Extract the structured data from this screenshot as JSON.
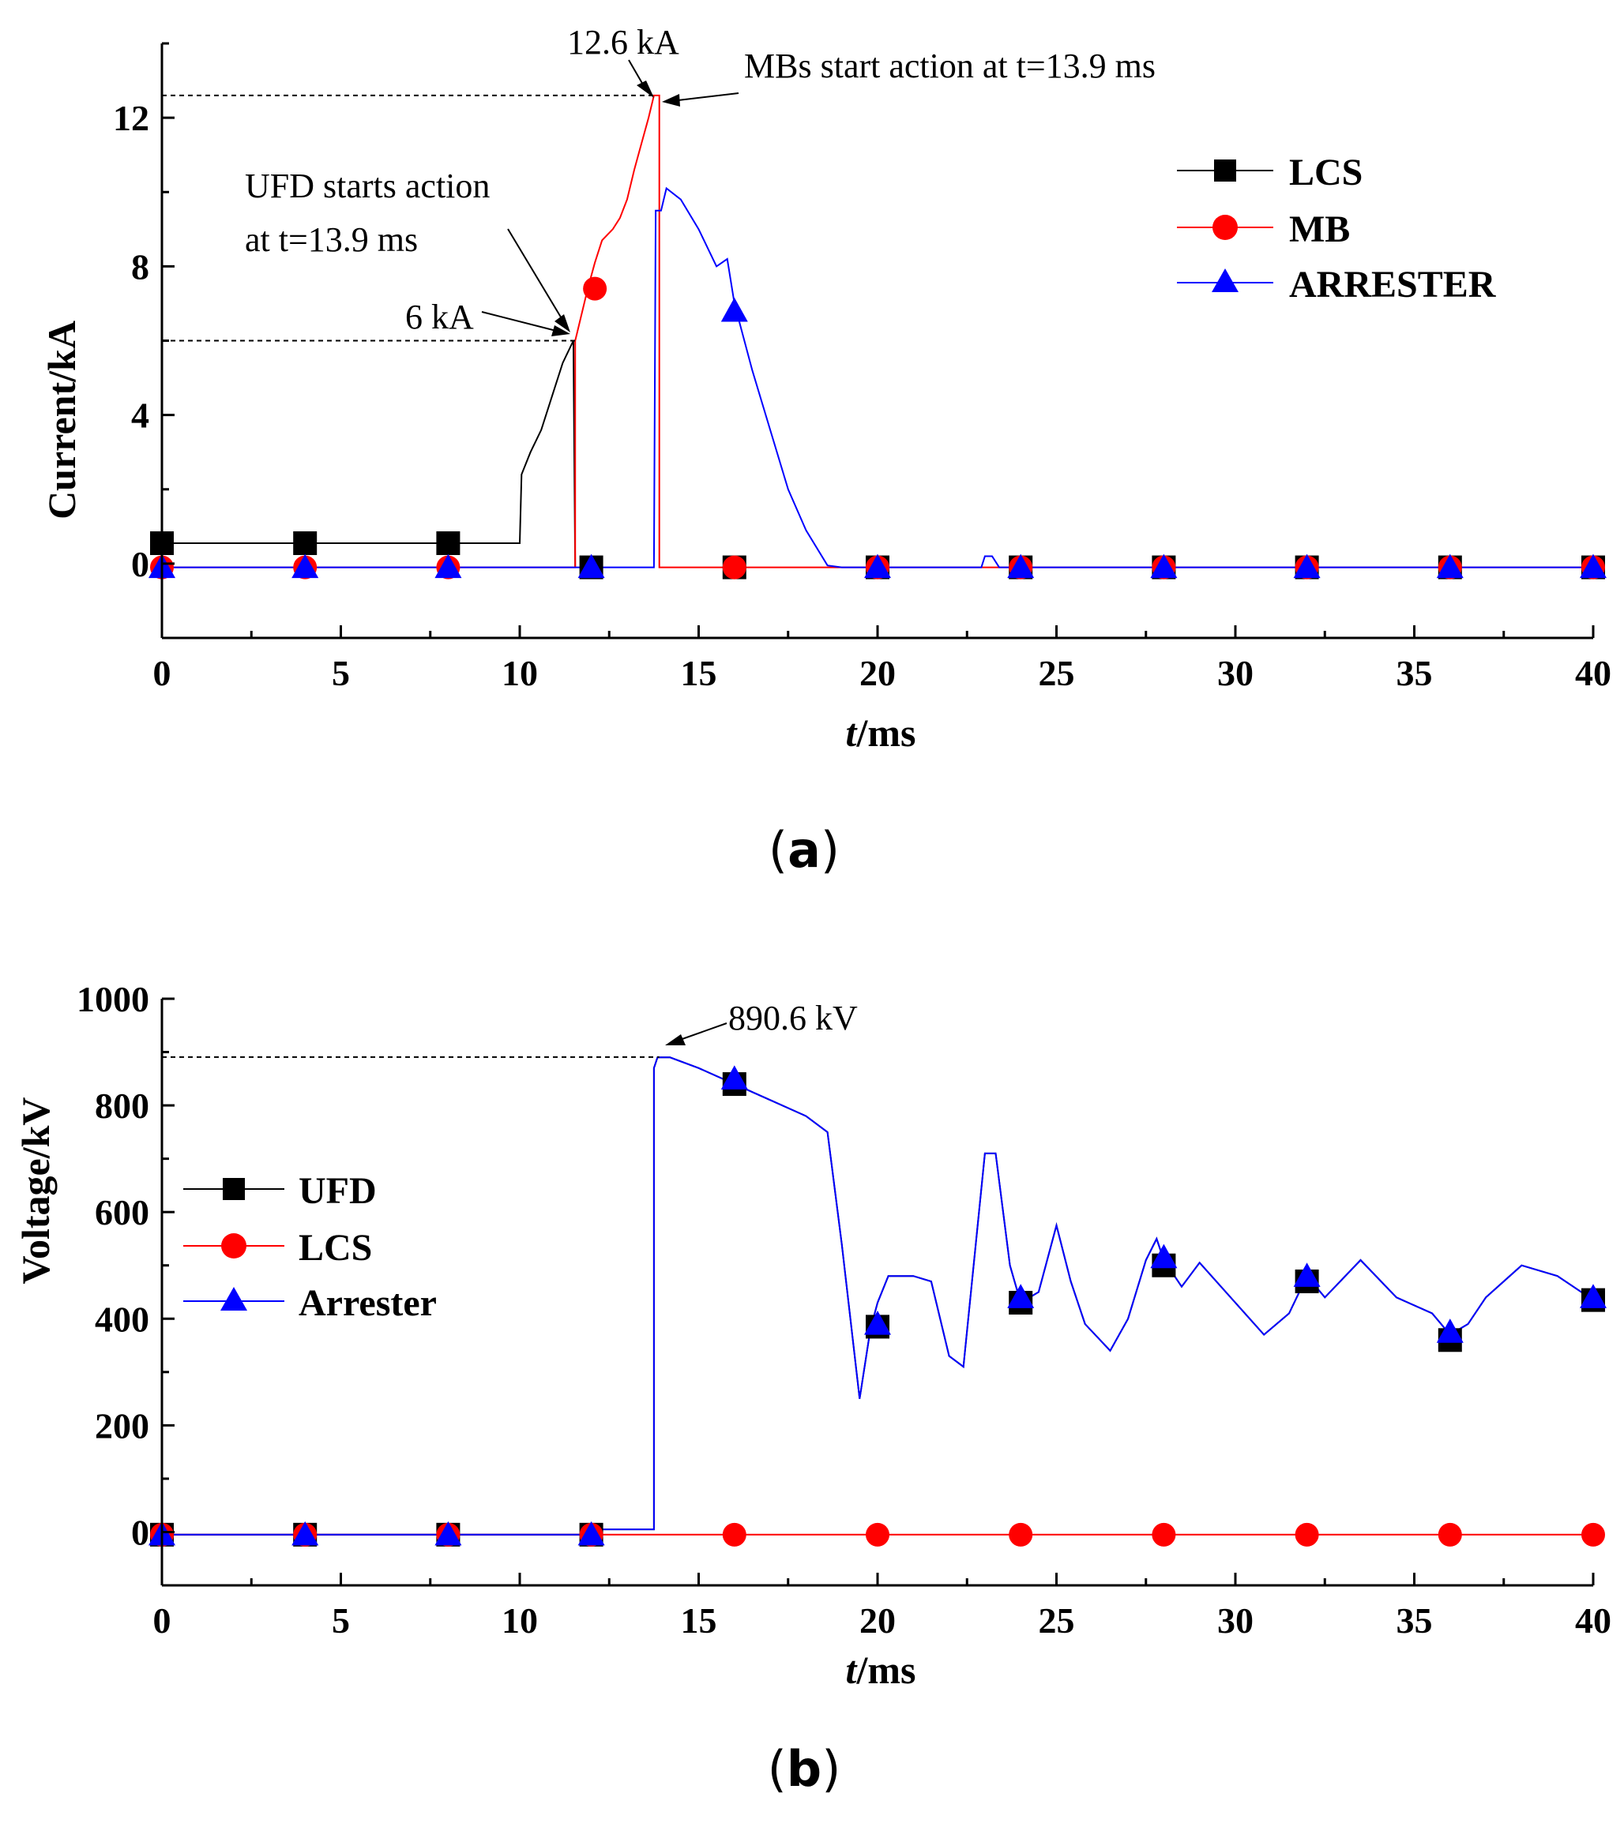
{
  "colors": {
    "black": "#000000",
    "red": "#ff0000",
    "blue": "#0000ff"
  },
  "chart_data": [
    {
      "id": "a",
      "type": "line",
      "panel_label": "(a)",
      "panel_letter": "a",
      "xlabel_italic": "t",
      "xlabel_rest": "/ms",
      "ylabel": "Current/kA",
      "xlim": [
        0,
        40
      ],
      "ylim": [
        -2,
        14
      ],
      "xticks": [
        0,
        5,
        10,
        15,
        20,
        25,
        30,
        35,
        40
      ],
      "yticks": [
        0,
        4,
        8,
        12
      ],
      "legend_position": "top-right",
      "series": [
        {
          "name": "LCS",
          "color": "#000000",
          "marker": "square",
          "x": [
            0,
            10,
            10.05,
            10.3,
            10.6,
            10.9,
            11.2,
            11.5,
            11.55
          ],
          "y": [
            0.55,
            0.55,
            2.4,
            3.0,
            3.6,
            4.5,
            5.4,
            6.0,
            -0.1
          ],
          "marker_x": [
            0,
            4,
            8,
            12,
            16,
            20,
            24,
            28,
            32,
            36,
            40
          ],
          "marker_y": [
            0.55,
            0.55,
            0.55,
            -0.1,
            -0.1,
            -0.1,
            -0.1,
            -0.1,
            -0.1,
            -0.1,
            -0.1
          ]
        },
        {
          "name": "MB",
          "color": "#ff0000",
          "marker": "circle",
          "x": [
            0,
            11.55,
            11.55,
            11.6,
            11.9,
            12.1,
            12.3,
            12.6,
            12.8,
            13.0,
            13.2,
            13.4,
            13.6,
            13.75,
            13.9,
            13.9,
            40
          ],
          "y": [
            -0.1,
            -0.1,
            6.0,
            6.2,
            7.4,
            8.1,
            8.7,
            9.0,
            9.3,
            9.8,
            10.6,
            11.3,
            12.0,
            12.6,
            12.6,
            -0.1,
            -0.1
          ],
          "marker_x": [
            0,
            4,
            8,
            12.1,
            16,
            20,
            24,
            28,
            32,
            36,
            40
          ],
          "marker_y": [
            -0.1,
            -0.1,
            -0.1,
            7.4,
            -0.1,
            -0.1,
            -0.1,
            -0.1,
            -0.1,
            -0.1,
            -0.1
          ]
        },
        {
          "name": "ARRESTER",
          "color": "#0000ff",
          "marker": "triangle",
          "x": [
            0,
            13.75,
            13.8,
            13.95,
            14.1,
            14.5,
            15.0,
            15.5,
            15.8,
            16.0,
            16.5,
            17.0,
            17.5,
            18.0,
            18.6,
            19.0,
            22.9,
            23.0,
            23.2,
            23.4,
            40
          ],
          "y": [
            -0.1,
            -0.1,
            9.5,
            9.5,
            10.1,
            9.8,
            9.0,
            8.0,
            8.2,
            7.0,
            5.2,
            3.6,
            2.0,
            0.9,
            -0.05,
            -0.1,
            -0.1,
            0.2,
            0.2,
            -0.1,
            -0.1
          ],
          "marker_x": [
            0,
            4,
            8,
            12,
            16,
            20,
            24,
            28,
            32,
            36,
            40
          ],
          "marker_y": [
            -0.1,
            -0.1,
            -0.1,
            -0.1,
            6.8,
            -0.1,
            -0.1,
            -0.1,
            -0.1,
            -0.1,
            -0.1
          ]
        }
      ],
      "annotations": [
        {
          "id": "peak",
          "text": "12.6 kA"
        },
        {
          "id": "mbs",
          "text": "MBs start action at t=13.9 ms"
        },
        {
          "id": "ufd1",
          "text": "UFD starts action"
        },
        {
          "id": "ufd2",
          "text": "at t=13.9 ms"
        },
        {
          "id": "sixka",
          "text": "6 kA"
        }
      ]
    },
    {
      "id": "b",
      "type": "line",
      "panel_label": "(b)",
      "panel_letter": "b",
      "xlabel_italic": "t",
      "xlabel_rest": "/ms",
      "ylabel": "Voltage/kV",
      "xlim": [
        0,
        40
      ],
      "ylim": [
        -100,
        1000
      ],
      "xticks": [
        0,
        5,
        10,
        15,
        20,
        25,
        30,
        35,
        40
      ],
      "yticks": [
        0,
        200,
        400,
        600,
        800,
        1000
      ],
      "legend_position": "middle-left",
      "series": [
        {
          "name": "UFD",
          "color": "#000000",
          "marker": "square",
          "x": [
            0,
            11.8,
            11.8,
            13.75,
            13.75,
            13.85,
            14.2,
            15.0,
            16.0,
            17.0,
            18.0,
            18.6,
            19.0,
            19.5,
            19.8,
            20.0,
            20.3,
            21.0,
            21.5,
            22.0,
            22.4,
            23.0,
            23.3,
            23.7,
            24.0,
            24.5,
            25.0,
            25.4,
            25.8,
            26.5,
            27.0,
            27.5,
            27.8,
            28.0,
            28.5,
            29.0,
            30.0,
            30.8,
            31.5,
            32.0,
            32.5,
            33.5,
            34.5,
            35.5,
            36.0,
            36.5,
            37.0,
            38.0,
            39.0,
            40.0
          ],
          "y": [
            -5,
            -5,
            5,
            5,
            870,
            890,
            890,
            870,
            840,
            810,
            780,
            750,
            540,
            250,
            380,
            430,
            480,
            480,
            470,
            330,
            310,
            710,
            710,
            500,
            430,
            450,
            575,
            470,
            390,
            340,
            400,
            510,
            550,
            510,
            460,
            505,
            430,
            370,
            410,
            480,
            440,
            510,
            440,
            410,
            370,
            390,
            440,
            500,
            480,
            435
          ],
          "marker_x": [
            0,
            4,
            8,
            12,
            16,
            20,
            24,
            28,
            32,
            36,
            40
          ],
          "marker_y": [
            -5,
            -5,
            -5,
            -5,
            840,
            385,
            430,
            500,
            470,
            360,
            435
          ]
        },
        {
          "name": "LCS",
          "color": "#ff0000",
          "marker": "circle",
          "x": [
            0,
            40
          ],
          "y": [
            -5,
            -5
          ],
          "marker_x": [
            0,
            4,
            8,
            12,
            16,
            20,
            24,
            28,
            32,
            36,
            40
          ],
          "marker_y": [
            -5,
            -5,
            -5,
            -5,
            -5,
            -5,
            -5,
            -5,
            -5,
            -5,
            -5
          ]
        },
        {
          "name": "Arrester",
          "color": "#0000ff",
          "marker": "triangle",
          "x": [
            0,
            11.8,
            11.8,
            13.75,
            13.75,
            13.85,
            14.2,
            15.0,
            16.0,
            17.0,
            18.0,
            18.6,
            19.0,
            19.5,
            19.8,
            20.0,
            20.3,
            21.0,
            21.5,
            22.0,
            22.4,
            23.0,
            23.3,
            23.7,
            24.0,
            24.5,
            25.0,
            25.4,
            25.8,
            26.5,
            27.0,
            27.5,
            27.8,
            28.0,
            28.5,
            29.0,
            30.0,
            30.8,
            31.5,
            32.0,
            32.5,
            33.5,
            34.5,
            35.5,
            36.0,
            36.5,
            37.0,
            38.0,
            39.0,
            40.0
          ],
          "y": [
            -5,
            -5,
            5,
            5,
            870,
            890,
            890,
            870,
            840,
            810,
            780,
            750,
            540,
            250,
            380,
            430,
            480,
            480,
            470,
            330,
            310,
            710,
            710,
            500,
            430,
            450,
            575,
            470,
            390,
            340,
            400,
            510,
            550,
            510,
            460,
            505,
            430,
            370,
            410,
            480,
            440,
            510,
            440,
            410,
            370,
            390,
            440,
            500,
            480,
            435
          ],
          "marker_x": [
            0,
            4,
            8,
            12,
            16,
            20,
            24,
            28,
            32,
            36,
            40
          ],
          "marker_y": [
            -5,
            -5,
            -5,
            -5,
            850,
            390,
            440,
            515,
            480,
            375,
            440
          ]
        }
      ],
      "annotations": [
        {
          "id": "peakv",
          "text": "890.6 kV"
        }
      ]
    }
  ]
}
